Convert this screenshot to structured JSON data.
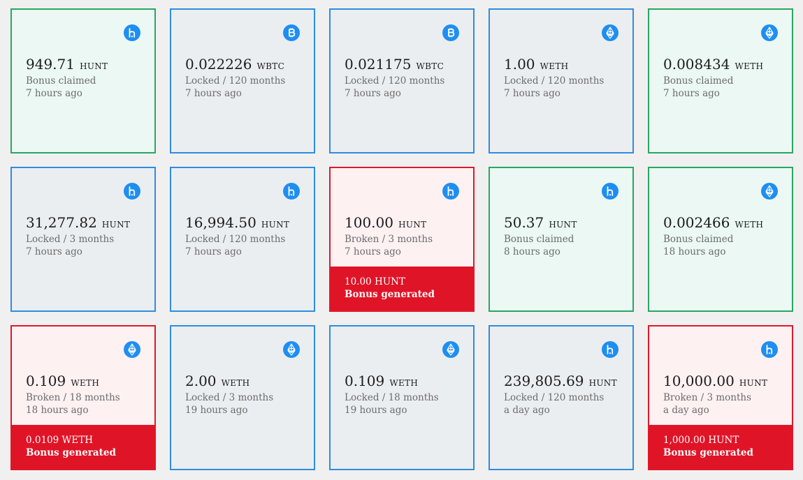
{
  "colors": {
    "locked_border": "#2e8de0",
    "claimed_border": "#27a764",
    "broken_border": "#e0182b",
    "bonus_bg": "#e01427",
    "coin_icon_bg": "#1f8ef1"
  },
  "cards": [
    {
      "state": "claimed",
      "icon": "hunt-icon",
      "amount": "949.71",
      "symbol": "HUNT",
      "status": "Bonus claimed",
      "time": "7 hours ago"
    },
    {
      "state": "locked",
      "icon": "bitcoin-icon",
      "amount": "0.022226",
      "symbol": "WBTC",
      "status": "Locked / 120 months",
      "time": "7 hours ago"
    },
    {
      "state": "locked",
      "icon": "bitcoin-icon",
      "amount": "0.021175",
      "symbol": "WBTC",
      "status": "Locked / 120 months",
      "time": "7 hours ago"
    },
    {
      "state": "locked",
      "icon": "ethereum-icon",
      "amount": "1.00",
      "symbol": "WETH",
      "status": "Locked / 120 months",
      "time": "7 hours ago"
    },
    {
      "state": "claimed",
      "icon": "ethereum-icon",
      "amount": "0.008434",
      "symbol": "WETH",
      "status": "Bonus claimed",
      "time": "7 hours ago"
    },
    {
      "state": "locked",
      "icon": "hunt-icon",
      "amount": "31,277.82",
      "symbol": "HUNT",
      "status": "Locked / 3 months",
      "time": "7 hours ago"
    },
    {
      "state": "locked",
      "icon": "hunt-icon",
      "amount": "16,994.50",
      "symbol": "HUNT",
      "status": "Locked / 120 months",
      "time": "7 hours ago"
    },
    {
      "state": "broken",
      "icon": "hunt-icon",
      "amount": "100.00",
      "symbol": "HUNT",
      "status": "Broken / 3 months",
      "time": "7 hours ago",
      "bonus_amount": "10.00 HUNT",
      "bonus_label": "Bonus generated"
    },
    {
      "state": "claimed",
      "icon": "hunt-icon",
      "amount": "50.37",
      "symbol": "HUNT",
      "status": "Bonus claimed",
      "time": "8 hours ago"
    },
    {
      "state": "claimed",
      "icon": "ethereum-icon",
      "amount": "0.002466",
      "symbol": "WETH",
      "status": "Bonus claimed",
      "time": "18 hours ago"
    },
    {
      "state": "broken",
      "icon": "ethereum-icon",
      "amount": "0.109",
      "symbol": "WETH",
      "status": "Broken / 18 months",
      "time": "18 hours ago",
      "bonus_amount": "0.0109 WETH",
      "bonus_label": "Bonus generated"
    },
    {
      "state": "locked",
      "icon": "ethereum-icon",
      "amount": "2.00",
      "symbol": "WETH",
      "status": "Locked / 3 months",
      "time": "19 hours ago"
    },
    {
      "state": "locked",
      "icon": "ethereum-icon",
      "amount": "0.109",
      "symbol": "WETH",
      "status": "Locked / 18 months",
      "time": "19 hours ago"
    },
    {
      "state": "locked",
      "icon": "hunt-icon",
      "amount": "239,805.69",
      "symbol": "HUNT",
      "status": "Locked / 120 months",
      "time": "a day ago"
    },
    {
      "state": "broken",
      "icon": "hunt-icon",
      "amount": "10,000.00",
      "symbol": "HUNT",
      "status": "Broken / 3 months",
      "time": "a day ago",
      "bonus_amount": "1,000.00 HUNT",
      "bonus_label": "Bonus generated"
    }
  ]
}
